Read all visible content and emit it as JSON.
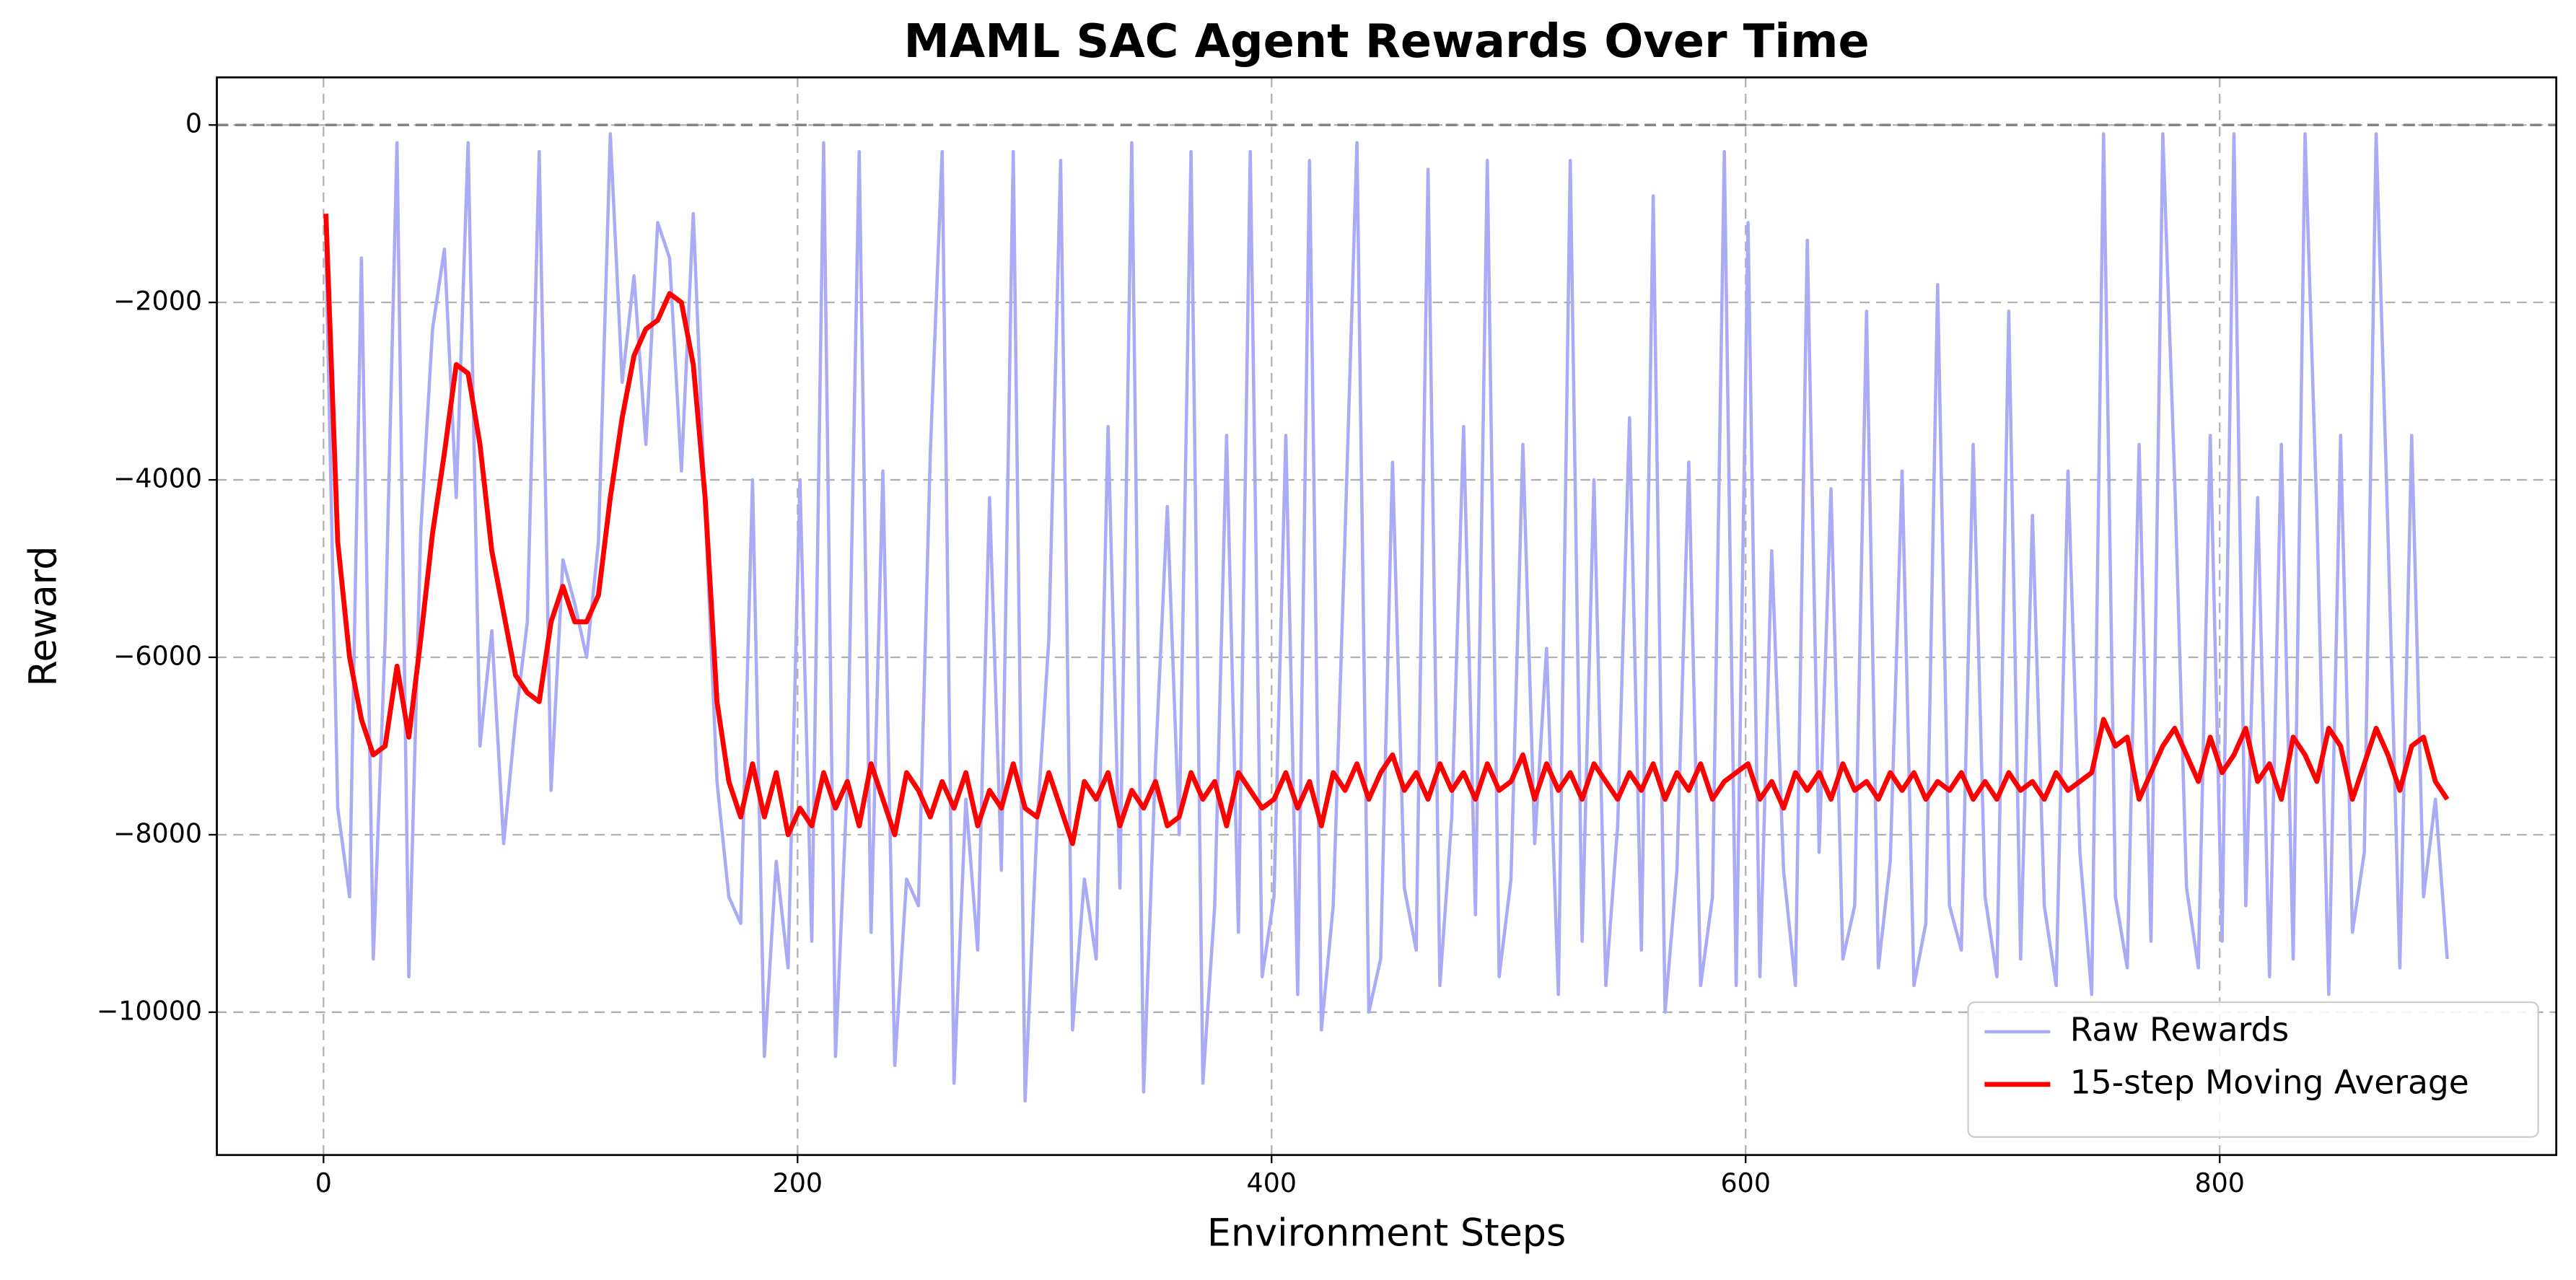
{
  "chart_data": {
    "type": "line",
    "title": "MAML SAC Agent Rewards Over Time",
    "x_label": "Environment Steps",
    "y_label": "Reward",
    "x": [
      1,
      6,
      11,
      16,
      21,
      26,
      31,
      36,
      41,
      46,
      51,
      56,
      61,
      66,
      71,
      76,
      81,
      86,
      91,
      96,
      101,
      106,
      111,
      116,
      121,
      126,
      131,
      136,
      141,
      146,
      151,
      156,
      161,
      166,
      171,
      176,
      181,
      186,
      191,
      196,
      201,
      206,
      211,
      216,
      221,
      226,
      231,
      236,
      241,
      246,
      251,
      256,
      261,
      266,
      271,
      276,
      281,
      286,
      291,
      296,
      301,
      306,
      311,
      316,
      321,
      326,
      331,
      336,
      341,
      346,
      351,
      356,
      361,
      366,
      371,
      376,
      381,
      386,
      391,
      396,
      401,
      406,
      411,
      416,
      421,
      426,
      431,
      436,
      441,
      446,
      451,
      456,
      461,
      466,
      471,
      476,
      481,
      486,
      491,
      496,
      501,
      506,
      511,
      516,
      521,
      526,
      531,
      536,
      541,
      546,
      551,
      556,
      561,
      566,
      571,
      576,
      581,
      586,
      591,
      596,
      601,
      606,
      611,
      616,
      621,
      626,
      631,
      636,
      641,
      646,
      651,
      656,
      661,
      666,
      671,
      676,
      681,
      686,
      691,
      696,
      701,
      706,
      711,
      716,
      721,
      726,
      731,
      736,
      741,
      746,
      751,
      756,
      761,
      766,
      771,
      776,
      781,
      786,
      791,
      796,
      801,
      806,
      811,
      816,
      821,
      826,
      831,
      836,
      841,
      846,
      851,
      856,
      861,
      866,
      871,
      876,
      881,
      886,
      891,
      896
    ],
    "series": [
      {
        "name": "Raw Rewards",
        "color": "#aaaaf5",
        "values": [
          -1400,
          -7700,
          -8700,
          -1500,
          -9400,
          -5800,
          -200,
          -9600,
          -4600,
          -2300,
          -1400,
          -4200,
          -200,
          -7000,
          -5700,
          -8100,
          -6700,
          -5600,
          -300,
          -7500,
          -4900,
          -5400,
          -6000,
          -4700,
          -100,
          -2900,
          -1700,
          -3600,
          -1100,
          -1500,
          -3900,
          -1000,
          -4300,
          -7400,
          -8700,
          -9000,
          -4000,
          -10500,
          -8300,
          -9500,
          -4000,
          -9200,
          -200,
          -10500,
          -7400,
          -300,
          -9100,
          -3900,
          -10600,
          -8500,
          -8800,
          -3700,
          -300,
          -10800,
          -7600,
          -9300,
          -4200,
          -8400,
          -300,
          -11000,
          -7900,
          -5800,
          -400,
          -10200,
          -8500,
          -9400,
          -3400,
          -8600,
          -200,
          -10900,
          -7200,
          -4300,
          -8000,
          -300,
          -10800,
          -8800,
          -3500,
          -9100,
          -300,
          -9600,
          -8700,
          -3500,
          -9800,
          -400,
          -10200,
          -8800,
          -4600,
          -200,
          -10000,
          -9400,
          -3800,
          -8600,
          -9300,
          -500,
          -9700,
          -7800,
          -3400,
          -8900,
          -400,
          -9600,
          -8500,
          -3600,
          -8100,
          -5900,
          -9800,
          -400,
          -9200,
          -4000,
          -9700,
          -7900,
          -3300,
          -9300,
          -800,
          -10000,
          -8400,
          -3800,
          -9700,
          -8700,
          -300,
          -9700,
          -1100,
          -9600,
          -4800,
          -8400,
          -9700,
          -1300,
          -8200,
          -4100,
          -9400,
          -8800,
          -2100,
          -9500,
          -8300,
          -3900,
          -9700,
          -9000,
          -1800,
          -8800,
          -9300,
          -3600,
          -8700,
          -9600,
          -2100,
          -9400,
          -4400,
          -8800,
          -9700,
          -3900,
          -8200,
          -9800,
          -100,
          -8700,
          -9500,
          -3600,
          -9200,
          -100,
          -4000,
          -8600,
          -9500,
          -3500,
          -9200,
          -100,
          -8800,
          -4200,
          -9600,
          -3600,
          -9400,
          -100,
          -4400,
          -9800,
          -3500,
          -9100,
          -8200,
          -100,
          -4600,
          -9500,
          -3500,
          -8700,
          -7600,
          -9400
        ]
      },
      {
        "name": "15-step Moving Average",
        "color": "#ff0000",
        "values": [
          -1000,
          -4700,
          -6000,
          -6700,
          -7100,
          -7000,
          -6100,
          -6900,
          -5800,
          -4600,
          -3700,
          -2700,
          -2800,
          -3600,
          -4800,
          -5500,
          -6200,
          -6400,
          -6500,
          -5600,
          -5200,
          -5600,
          -5600,
          -5300,
          -4200,
          -3300,
          -2600,
          -2300,
          -2200,
          -1900,
          -2000,
          -2700,
          -4200,
          -6500,
          -7400,
          -7800,
          -7200,
          -7800,
          -7300,
          -8000,
          -7700,
          -7900,
          -7300,
          -7700,
          -7400,
          -7900,
          -7200,
          -7600,
          -8000,
          -7300,
          -7500,
          -7800,
          -7400,
          -7700,
          -7300,
          -7900,
          -7500,
          -7700,
          -7200,
          -7700,
          -7800,
          -7300,
          -7700,
          -8100,
          -7400,
          -7600,
          -7300,
          -7900,
          -7500,
          -7700,
          -7400,
          -7900,
          -7800,
          -7300,
          -7600,
          -7400,
          -7900,
          -7300,
          -7500,
          -7700,
          -7600,
          -7300,
          -7700,
          -7400,
          -7900,
          -7300,
          -7500,
          -7200,
          -7600,
          -7300,
          -7100,
          -7500,
          -7300,
          -7600,
          -7200,
          -7500,
          -7300,
          -7600,
          -7200,
          -7500,
          -7400,
          -7100,
          -7600,
          -7200,
          -7500,
          -7300,
          -7600,
          -7200,
          -7400,
          -7600,
          -7300,
          -7500,
          -7200,
          -7600,
          -7300,
          -7500,
          -7200,
          -7600,
          -7400,
          -7300,
          -7200,
          -7600,
          -7400,
          -7700,
          -7300,
          -7500,
          -7300,
          -7600,
          -7200,
          -7500,
          -7400,
          -7600,
          -7300,
          -7500,
          -7300,
          -7600,
          -7400,
          -7500,
          -7300,
          -7600,
          -7400,
          -7600,
          -7300,
          -7500,
          -7400,
          -7600,
          -7300,
          -7500,
          -7400,
          -7300,
          -6700,
          -7000,
          -6900,
          -7600,
          -7300,
          -7000,
          -6800,
          -7100,
          -7400,
          -6900,
          -7300,
          -7100,
          -6800,
          -7400,
          -7200,
          -7600,
          -6900,
          -7100,
          -7400,
          -6800,
          -7000,
          -7600,
          -7200,
          -6800,
          -7100,
          -7500,
          -7000,
          -6900,
          -7400,
          -7600
        ]
      }
    ],
    "xlim": [
      -45,
      942
    ],
    "ylim": [
      -11610,
      537
    ],
    "xticks": [
      0,
      200,
      400,
      600,
      800
    ],
    "yticks": [
      {
        "value": 0,
        "label": "0"
      },
      {
        "value": -2000,
        "label": "−2000"
      },
      {
        "value": -4000,
        "label": "−4000"
      },
      {
        "value": -6000,
        "label": "−6000"
      },
      {
        "value": -8000,
        "label": "−8000"
      },
      {
        "value": -10000,
        "label": "−10000"
      }
    ],
    "reference_line": 0,
    "grid": true,
    "legend": "lower right"
  }
}
